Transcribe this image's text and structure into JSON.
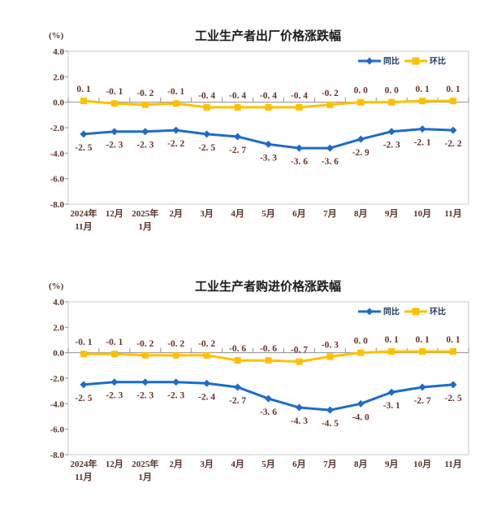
{
  "colors": {
    "yoy": "#1e6cc8",
    "mom": "#ffc000",
    "data_label": "#68352a",
    "axis_text": "#5a342b",
    "title": "#1a1a1a",
    "legend_text": "#1f3864",
    "plot_border": "#c8c8c8",
    "axis_line": "#8f8f8f",
    "background": "#ffffff"
  },
  "chart_data": [
    {
      "type": "line",
      "id": "ppi-output-price",
      "title": "工业生产者出厂价格涨跌幅",
      "unit_label": "(%)",
      "ylim": [
        -8.0,
        4.0
      ],
      "y_step": 2.0,
      "y_ticks": [
        "4.0",
        "2.0",
        "0.0",
        "-2.0",
        "-4.0",
        "-6.0",
        "-8.0"
      ],
      "grid": "off",
      "legend_position": "top-right",
      "categories": [
        "2024年11月",
        "12月",
        "2025年1月",
        "2月",
        "3月",
        "4月",
        "5月",
        "6月",
        "7月",
        "8月",
        "9月",
        "10月",
        "11月"
      ],
      "category_lines": [
        [
          "2024年",
          "11月"
        ],
        [
          "12月"
        ],
        [
          "2025年",
          "1月"
        ],
        [
          "2月"
        ],
        [
          "3月"
        ],
        [
          "4月"
        ],
        [
          "5月"
        ],
        [
          "6月"
        ],
        [
          "7月"
        ],
        [
          "8月"
        ],
        [
          "9月"
        ],
        [
          "10月"
        ],
        [
          "11月"
        ]
      ],
      "series": [
        {
          "name": "同比",
          "color_key": "yoy",
          "marker": "diamond",
          "label_side": "below",
          "values": [
            -2.5,
            -2.3,
            -2.3,
            -2.2,
            -2.5,
            -2.7,
            -3.3,
            -3.6,
            -3.6,
            -2.9,
            -2.3,
            -2.1,
            -2.2
          ],
          "labels": [
            "-2. 5",
            "-2. 3",
            "-2. 3",
            "-2. 2",
            "-2. 5",
            "-2. 7",
            "-3. 3",
            "-3. 6",
            "-3. 6",
            "-2. 9",
            "-2. 3",
            "-2. 1",
            "-2. 2"
          ]
        },
        {
          "name": "环比",
          "color_key": "mom",
          "marker": "square",
          "label_side": "above",
          "values": [
            0.1,
            -0.1,
            -0.2,
            -0.1,
            -0.4,
            -0.4,
            -0.4,
            -0.4,
            -0.2,
            0.0,
            0.0,
            0.1,
            0.1
          ],
          "labels": [
            "0. 1",
            "-0. 1",
            "-0. 2",
            "-0. 1",
            "-0. 4",
            "-0. 4",
            "-0. 4",
            "-0. 4",
            "-0. 2",
            "0. 0",
            "0. 0",
            "0. 1",
            "0. 1"
          ]
        }
      ]
    },
    {
      "type": "line",
      "id": "ppi-purchase-price",
      "title": "工业生产者购进价格涨跌幅",
      "unit_label": "(%)",
      "ylim": [
        -8.0,
        4.0
      ],
      "y_step": 2.0,
      "y_ticks": [
        "4.0",
        "2.0",
        "0.0",
        "-2.0",
        "-4.0",
        "-6.0",
        "-8.0"
      ],
      "grid": "off",
      "legend_position": "top-right",
      "categories": [
        "2024年11月",
        "12月",
        "2025年1月",
        "2月",
        "3月",
        "4月",
        "5月",
        "6月",
        "7月",
        "8月",
        "9月",
        "10月",
        "11月"
      ],
      "category_lines": [
        [
          "2024年",
          "11月"
        ],
        [
          "12月"
        ],
        [
          "2025年",
          "1月"
        ],
        [
          "2月"
        ],
        [
          "3月"
        ],
        [
          "4月"
        ],
        [
          "5月"
        ],
        [
          "6月"
        ],
        [
          "7月"
        ],
        [
          "8月"
        ],
        [
          "9月"
        ],
        [
          "10月"
        ],
        [
          "11月"
        ]
      ],
      "series": [
        {
          "name": "同比",
          "color_key": "yoy",
          "marker": "diamond",
          "label_side": "below",
          "values": [
            -2.5,
            -2.3,
            -2.3,
            -2.3,
            -2.4,
            -2.7,
            -3.6,
            -4.3,
            -4.5,
            -4.0,
            -3.1,
            -2.7,
            -2.5
          ],
          "labels": [
            "-2. 5",
            "-2. 3",
            "-2. 3",
            "-2. 3",
            "-2. 4",
            "-2. 7",
            "-3. 6",
            "-4. 3",
            "-4. 5",
            "-4. 0",
            "-3. 1",
            "-2. 7",
            "-2. 5"
          ]
        },
        {
          "name": "环比",
          "color_key": "mom",
          "marker": "square",
          "label_side": "above",
          "values": [
            -0.1,
            -0.1,
            -0.2,
            -0.2,
            -0.2,
            -0.6,
            -0.6,
            -0.7,
            -0.3,
            0.0,
            0.1,
            0.1,
            0.1
          ],
          "labels": [
            "-0. 1",
            "-0. 1",
            "-0. 2",
            "-0. 2",
            "-0. 2",
            "-0. 6",
            "-0. 6",
            "-0. 7",
            "-0. 3",
            "0. 0",
            "0. 1",
            "0. 1",
            "0. 1"
          ]
        }
      ]
    }
  ]
}
